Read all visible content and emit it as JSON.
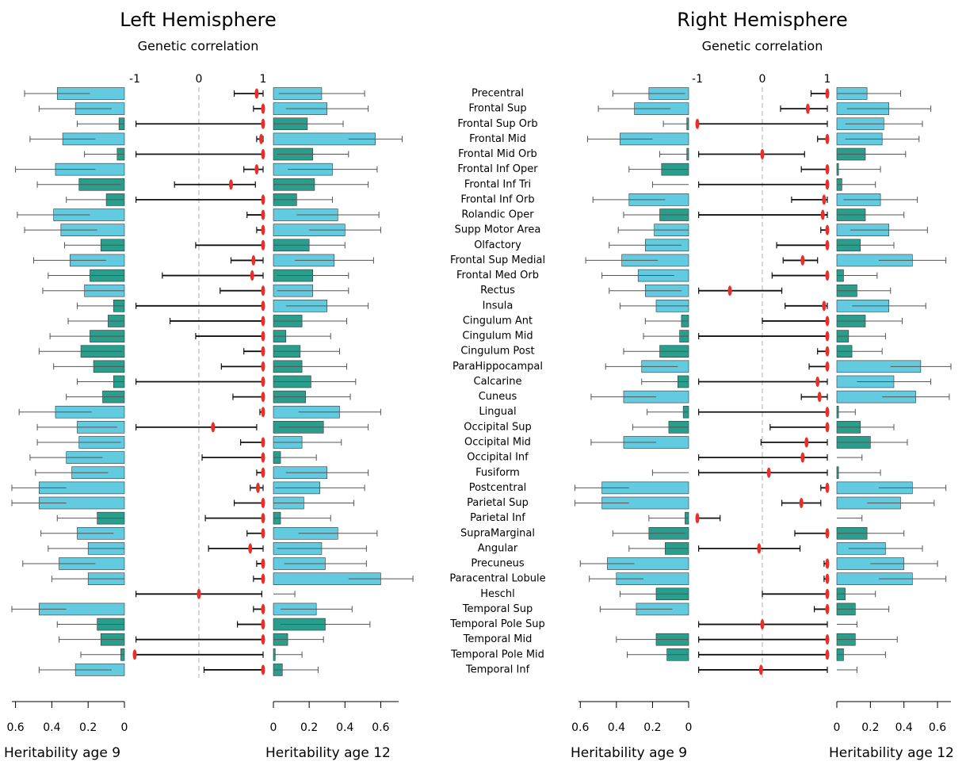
{
  "chart_data": {
    "type": "bar",
    "categories": [
      "Precentral",
      "Frontal Sup",
      "Frontal Sup Orb",
      "Frontal Mid",
      "Frontal Mid Orb",
      "Frontal Inf Oper",
      "Frontal Inf Tri",
      "Frontal Inf Orb",
      "Rolandic Oper",
      "Supp Motor Area",
      "Olfactory",
      "Frontal Sup Medial",
      "Frontal Med Orb",
      "Rectus",
      "Insula",
      "Cingulum Ant",
      "Cingulum Mid",
      "Cingulum Post",
      "ParaHippocampal",
      "Calcarine",
      "Cuneus",
      "Lingual",
      "Occipital Sup",
      "Occipital Mid",
      "Occipital Inf",
      "Fusiform",
      "Postcentral",
      "Parietal Sup",
      "Parietal Inf",
      "SupraMarginal",
      "Angular",
      "Precuneus",
      "Paracentral Lobule",
      "Heschl",
      "Temporal Sup",
      "Temporal Pole Sup",
      "Temporal Mid",
      "Temporal Pole Mid",
      "Temporal Inf"
    ],
    "panels": [
      {
        "title": "Left Hemisphere",
        "subtitle": "Genetic correlation",
        "h9": {
          "label": "Heritability age 9",
          "xlim": [
            0,
            0.62
          ],
          "xticks": [
            0.6,
            0.4,
            0.2,
            0
          ],
          "values": [
            0.37,
            0.27,
            0.03,
            0.34,
            0.04,
            0.38,
            0.25,
            0.1,
            0.39,
            0.35,
            0.13,
            0.3,
            0.19,
            0.22,
            0.06,
            0.09,
            0.19,
            0.24,
            0.17,
            0.06,
            0.12,
            0.38,
            0.26,
            0.25,
            0.32,
            0.29,
            0.47,
            0.47,
            0.15,
            0.26,
            0.2,
            0.36,
            0.2,
            0,
            0.47,
            0.15,
            0.13,
            0.02,
            0.27
          ],
          "errors": [
            0.18,
            0.2,
            0.23,
            0.18,
            0.18,
            0.22,
            0.23,
            0.22,
            0.2,
            0.2,
            0.2,
            0.2,
            0.23,
            0.23,
            0.2,
            0.22,
            0.22,
            0.23,
            0.22,
            0.2,
            0.2,
            0.2,
            0.22,
            0.23,
            0.2,
            0.2,
            0.15,
            0.15,
            0.22,
            0.2,
            0.22,
            0.2,
            0.2,
            0,
            0.15,
            0.22,
            0.23,
            0.22,
            0.2
          ],
          "colors": [
            "#62cbe0",
            "#62cbe0",
            "#2a9e8c",
            "#62cbe0",
            "#2a9e8c",
            "#62cbe0",
            "#2a9e8c",
            "#2a9e8c",
            "#62cbe0",
            "#62cbe0",
            "#2a9e8c",
            "#62cbe0",
            "#2a9e8c",
            "#62cbe0",
            "#2a9e8c",
            "#2a9e8c",
            "#2a9e8c",
            "#2a9e8c",
            "#2a9e8c",
            "#2a9e8c",
            "#2a9e8c",
            "#62cbe0",
            "#62cbe0",
            "#62cbe0",
            "#62cbe0",
            "#62cbe0",
            "#62cbe0",
            "#62cbe0",
            "#2a9e8c",
            "#62cbe0",
            "#62cbe0",
            "#62cbe0",
            "#62cbe0",
            "#62cbe0",
            "#62cbe0",
            "#2a9e8c",
            "#2a9e8c",
            "#2a9e8c",
            "#62cbe0"
          ]
        },
        "rg": {
          "xlim": [
            -1,
            1
          ],
          "xticks": [
            -1,
            0,
            1
          ],
          "color": "#e8302a",
          "values": [
            0.9,
            1,
            1,
            0.97,
            1,
            0.9,
            0.5,
            1,
            1,
            1,
            1,
            0.85,
            0.83,
            1,
            1,
            1,
            1,
            1,
            1,
            1,
            1,
            1,
            0.22,
            1,
            1,
            1,
            0.92,
            1,
            1,
            1,
            0.8,
            1,
            1,
            0,
            1,
            1,
            1,
            -1,
            1
          ],
          "lower": [
            0.55,
            0.85,
            -0.98,
            0.9,
            -0.98,
            0.7,
            -0.38,
            -0.98,
            0.75,
            0.9,
            -0.05,
            0.5,
            -0.57,
            0.33,
            -0.98,
            -0.45,
            -0.05,
            0.7,
            0.35,
            -0.98,
            0.53,
            0.95,
            -0.98,
            0.65,
            0.05,
            0.9,
            0.8,
            0.55,
            0.1,
            0.75,
            0.15,
            0.9,
            0.85,
            -0.98,
            0.85,
            0.6,
            -0.98,
            -1,
            0.08
          ],
          "upper": [
            1,
            1,
            1,
            1,
            1,
            1,
            0.88,
            1,
            1,
            1,
            1,
            1,
            1,
            1,
            1,
            1,
            1,
            1,
            1,
            1,
            1,
            1,
            0.9,
            1,
            1,
            1,
            1,
            1,
            1,
            1,
            1,
            1,
            1,
            0.98,
            1,
            1,
            1,
            1,
            1
          ]
        },
        "h12": {
          "label": "Heritability age 12",
          "xlim": [
            0,
            0.7
          ],
          "xticks": [
            0,
            0.2,
            0.4,
            0.6
          ],
          "values": [
            0.27,
            0.3,
            0.19,
            0.57,
            0.22,
            0.33,
            0.23,
            0.13,
            0.36,
            0.4,
            0.2,
            0.34,
            0.22,
            0.22,
            0.3,
            0.16,
            0.07,
            0.15,
            0.16,
            0.21,
            0.18,
            0.37,
            0.28,
            0.16,
            0.04,
            0.3,
            0.26,
            0.17,
            0.04,
            0.36,
            0.27,
            0.29,
            0.6,
            0,
            0.24,
            0.29,
            0.08,
            0.01,
            0.05
          ],
          "errors": [
            0.24,
            0.23,
            0.2,
            0.15,
            0.2,
            0.25,
            0.3,
            0.2,
            0.23,
            0.2,
            0.2,
            0.22,
            0.2,
            0.2,
            0.23,
            0.25,
            0.25,
            0.22,
            0.25,
            0.25,
            0.25,
            0.23,
            0.25,
            0.22,
            0.2,
            0.23,
            0.25,
            0.28,
            0.28,
            0.22,
            0.25,
            0.23,
            0.18,
            0.12,
            0.2,
            0.25,
            0.2,
            0.15,
            0.2
          ],
          "colors": [
            "#62cbe0",
            "#62cbe0",
            "#2a9e8c",
            "#62cbe0",
            "#2a9e8c",
            "#62cbe0",
            "#2a9e8c",
            "#2a9e8c",
            "#62cbe0",
            "#62cbe0",
            "#2a9e8c",
            "#62cbe0",
            "#2a9e8c",
            "#62cbe0",
            "#62cbe0",
            "#2a9e8c",
            "#2a9e8c",
            "#2a9e8c",
            "#2a9e8c",
            "#2a9e8c",
            "#2a9e8c",
            "#62cbe0",
            "#2a9e8c",
            "#62cbe0",
            "#2a9e8c",
            "#62cbe0",
            "#62cbe0",
            "#62cbe0",
            "#2a9e8c",
            "#62cbe0",
            "#62cbe0",
            "#62cbe0",
            "#62cbe0",
            "#62cbe0",
            "#62cbe0",
            "#2a9e8c",
            "#2a9e8c",
            "#2a9e8c",
            "#2a9e8c"
          ]
        }
      },
      {
        "title": "Right Hemisphere",
        "subtitle": "Genetic correlation",
        "h9": {
          "label": "Heritability age 9",
          "xlim": [
            0,
            0.61
          ],
          "xticks": [
            0.6,
            0.4,
            0.2,
            0
          ],
          "values": [
            0.22,
            0.3,
            0.01,
            0.38,
            0.01,
            0.15,
            0,
            0.33,
            0.16,
            0.19,
            0.24,
            0.37,
            0.28,
            0.24,
            0.18,
            0.04,
            0.05,
            0.16,
            0.26,
            0.06,
            0.36,
            0.03,
            0.11,
            0.36,
            0,
            0,
            0.48,
            0.48,
            0.02,
            0.22,
            0.13,
            0.45,
            0.4,
            0.18,
            0.29,
            0,
            0.18,
            0.12,
            0
          ],
          "errors": [
            0.2,
            0.2,
            0.13,
            0.18,
            0.15,
            0.18,
            0.2,
            0.2,
            0.2,
            0.2,
            0.2,
            0.2,
            0.2,
            0.2,
            0.2,
            0.2,
            0.2,
            0.2,
            0.2,
            0.2,
            0.18,
            0.2,
            0.2,
            0.18,
            0,
            0.2,
            0.15,
            0.15,
            0.2,
            0.2,
            0.2,
            0.15,
            0.15,
            0.2,
            0.2,
            0,
            0.22,
            0.22,
            0
          ],
          "colors": [
            "#62cbe0",
            "#62cbe0",
            "#2a9e8c",
            "#62cbe0",
            "#2a9e8c",
            "#2a9e8c",
            "#2a9e8c",
            "#62cbe0",
            "#2a9e8c",
            "#62cbe0",
            "#62cbe0",
            "#62cbe0",
            "#62cbe0",
            "#62cbe0",
            "#62cbe0",
            "#2a9e8c",
            "#2a9e8c",
            "#2a9e8c",
            "#62cbe0",
            "#2a9e8c",
            "#62cbe0",
            "#2a9e8c",
            "#2a9e8c",
            "#62cbe0",
            "#62cbe0",
            "#2a9e8c",
            "#62cbe0",
            "#62cbe0",
            "#2a9e8c",
            "#2a9e8c",
            "#2a9e8c",
            "#62cbe0",
            "#62cbe0",
            "#2a9e8c",
            "#62cbe0",
            "#62cbe0",
            "#2a9e8c",
            "#2a9e8c",
            "#62cbe0"
          ]
        },
        "rg": {
          "xlim": [
            -1,
            1
          ],
          "xticks": [
            -1,
            0,
            1
          ],
          "color": "#e8302a",
          "values": [
            1,
            0.7,
            -1,
            1,
            0,
            1,
            1,
            0.95,
            0.93,
            1,
            1,
            0.62,
            1,
            -0.5,
            0.95,
            1,
            1,
            1,
            1,
            0.85,
            0.88,
            1,
            1,
            0.68,
            0.62,
            0.1,
            1,
            0.6,
            -1,
            1,
            -0.05,
            1,
            1,
            1,
            1,
            0,
            1,
            1,
            -0.02
          ],
          "lower": [
            0.75,
            0.28,
            -1,
            0.85,
            -0.98,
            0.6,
            -0.98,
            0.45,
            -0.98,
            0.9,
            0.22,
            0.32,
            0.15,
            -0.98,
            0.35,
            0,
            -0.98,
            0.85,
            0.72,
            -0.98,
            0.6,
            -0.98,
            0.12,
            -0.02,
            -0.98,
            -0.98,
            0.9,
            0.3,
            -1,
            0.5,
            -0.98,
            0.95,
            0.95,
            0,
            0.8,
            -0.98,
            -0.98,
            -0.98,
            -0.98
          ],
          "upper": [
            1,
            1,
            1,
            1,
            0.65,
            1,
            1,
            1,
            1,
            1,
            1,
            0.85,
            1,
            0.3,
            1,
            1,
            1,
            1,
            1,
            1,
            1,
            1,
            1,
            1,
            1,
            1,
            1,
            0.9,
            -0.65,
            1,
            0.58,
            1,
            1,
            1,
            1,
            1,
            1,
            1,
            1
          ]
        },
        "h12": {
          "label": "Heritability age 12",
          "xlim": [
            0,
            0.68
          ],
          "xticks": [
            0,
            0.2,
            0.4,
            0.6
          ],
          "values": [
            0.18,
            0.31,
            0.28,
            0.27,
            0.17,
            0.01,
            0.03,
            0.26,
            0.17,
            0.31,
            0.14,
            0.45,
            0.04,
            0.12,
            0.31,
            0.17,
            0.07,
            0.09,
            0.5,
            0.34,
            0.47,
            0.01,
            0.14,
            0.2,
            0,
            0.01,
            0.45,
            0.38,
            0,
            0.18,
            0.29,
            0.4,
            0.45,
            0.05,
            0.11,
            0,
            0.11,
            0.04,
            0
          ],
          "errors": [
            0.2,
            0.25,
            0.23,
            0.22,
            0.24,
            0.25,
            0.2,
            0.22,
            0.23,
            0.23,
            0.2,
            0.2,
            0.2,
            0.2,
            0.22,
            0.22,
            0.22,
            0.18,
            0.18,
            0.22,
            0.2,
            0.1,
            0.2,
            0.22,
            0.15,
            0.25,
            0.2,
            0.2,
            0.15,
            0.22,
            0.22,
            0.2,
            0.2,
            0.18,
            0.2,
            0.12,
            0.25,
            0.25,
            0.12
          ],
          "colors": [
            "#62cbe0",
            "#62cbe0",
            "#62cbe0",
            "#62cbe0",
            "#2a9e8c",
            "#2a9e8c",
            "#2a9e8c",
            "#62cbe0",
            "#2a9e8c",
            "#62cbe0",
            "#2a9e8c",
            "#62cbe0",
            "#2a9e8c",
            "#2a9e8c",
            "#62cbe0",
            "#2a9e8c",
            "#2a9e8c",
            "#2a9e8c",
            "#62cbe0",
            "#62cbe0",
            "#62cbe0",
            "#2a9e8c",
            "#2a9e8c",
            "#2a9e8c",
            "#62cbe0",
            "#2a9e8c",
            "#62cbe0",
            "#62cbe0",
            "#62cbe0",
            "#2a9e8c",
            "#62cbe0",
            "#62cbe0",
            "#62cbe0",
            "#2a9e8c",
            "#2a9e8c",
            "#62cbe0",
            "#2a9e8c",
            "#2a9e8c",
            "#62cbe0"
          ]
        }
      }
    ]
  }
}
